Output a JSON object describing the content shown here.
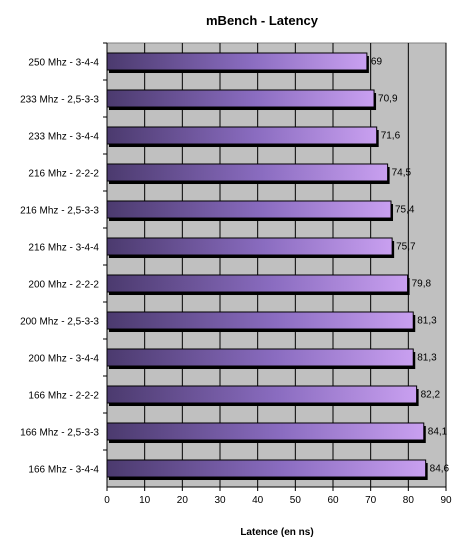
{
  "chart_data": {
    "type": "bar",
    "orientation": "horizontal",
    "title": "mBench - Latency",
    "xlabel": "Latence (en ns)",
    "ylabel": "",
    "xlim": [
      0,
      90
    ],
    "xticks": [
      0,
      10,
      20,
      30,
      40,
      50,
      60,
      70,
      80,
      90
    ],
    "grid": true,
    "plot_background": "#c0c0c0",
    "bar_color_start": "#4b3a6e",
    "bar_color_end": "#c9a0f0",
    "categories": [
      "250 Mhz - 3-4-4",
      "233 Mhz - 2,5-3-3",
      "233 Mhz - 3-4-4",
      "216 Mhz - 2-2-2",
      "216 Mhz - 2,5-3-3",
      "216 Mhz - 3-4-4",
      "200 Mhz - 2-2-2",
      "200 Mhz - 2,5-3-3",
      "200 Mhz - 3-4-4",
      "166 Mhz - 2-2-2",
      "166 Mhz - 2,5-3-3",
      "166 Mhz - 3-4-4"
    ],
    "values": [
      69,
      70.9,
      71.6,
      74.5,
      75.4,
      75.7,
      79.8,
      81.3,
      81.3,
      82.2,
      84.1,
      84.6
    ],
    "data_labels": [
      "69",
      "70,9",
      "71,6",
      "74,5",
      "75,4",
      "75,7",
      "79,8",
      "81,3",
      "81,3",
      "82,2",
      "84,1",
      "84,6"
    ]
  }
}
